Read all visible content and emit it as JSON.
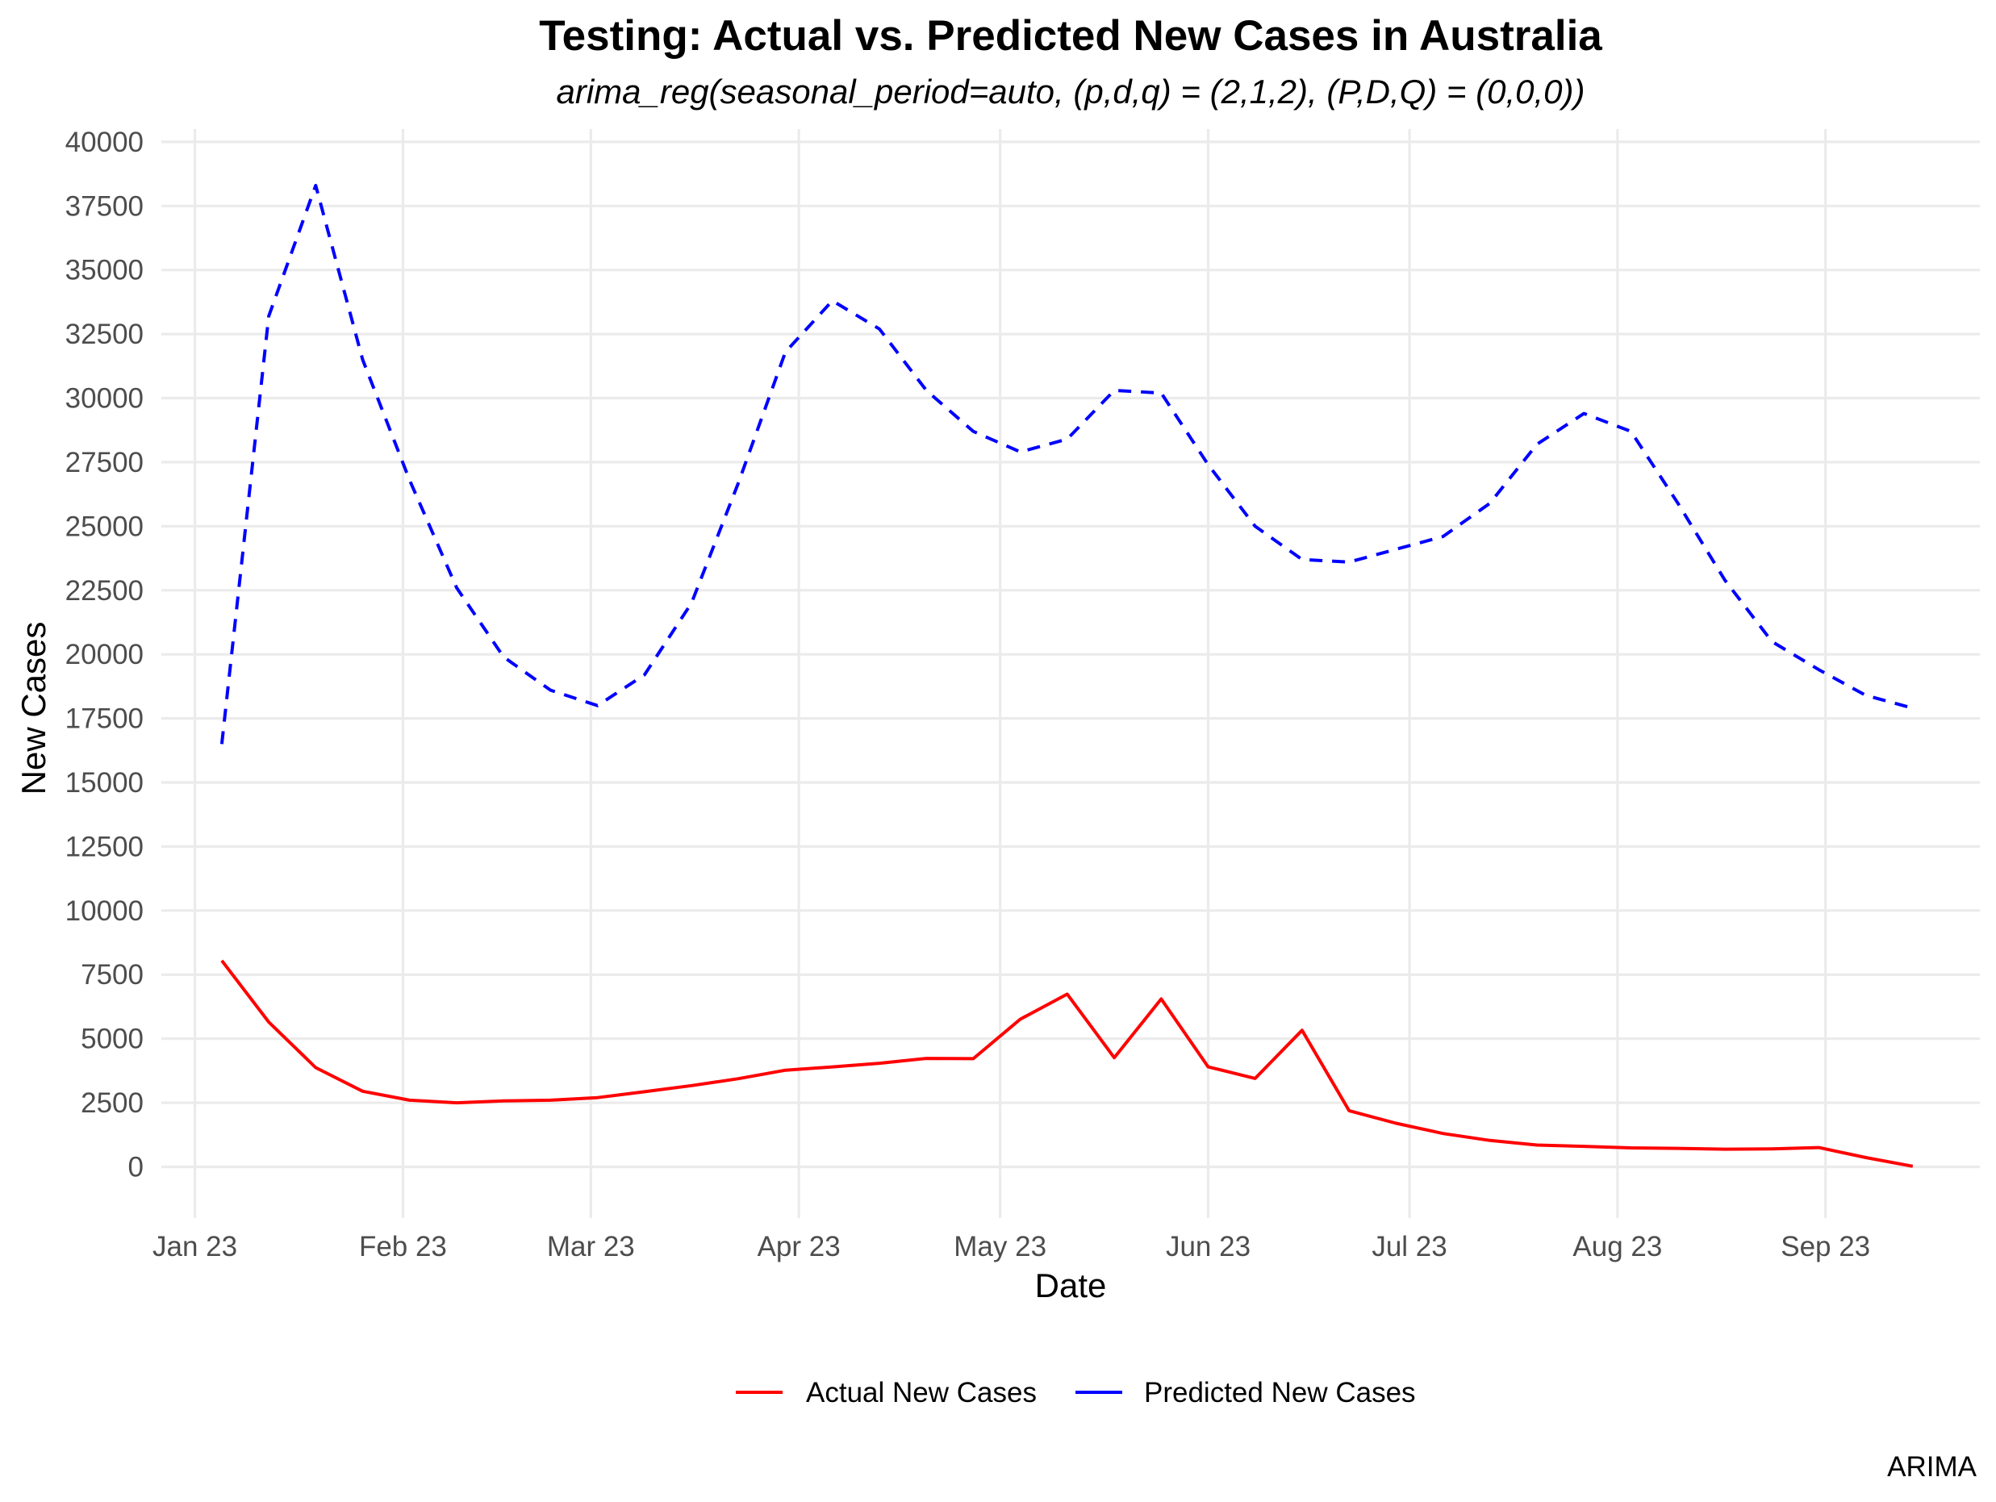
{
  "chart_data": {
    "type": "line",
    "title": "Testing: Actual vs. Predicted New Cases in Australia",
    "subtitle": "arima_reg(seasonal_period=auto, (p,d,q) = (2,1,2), (P,D,Q) = (0,0,0))",
    "xlabel": "Date",
    "ylabel": "New Cases",
    "caption": "ARIMA",
    "xlim": [
      "2022-12-27",
      "2023-09-24"
    ],
    "ylim": [
      -2000,
      40500
    ],
    "x_ticks": [
      {
        "date": "2023-01-01",
        "label": "Jan 23"
      },
      {
        "date": "2023-02-01",
        "label": "Feb 23"
      },
      {
        "date": "2023-03-01",
        "label": "Mar 23"
      },
      {
        "date": "2023-04-01",
        "label": "Apr 23"
      },
      {
        "date": "2023-05-01",
        "label": "May 23"
      },
      {
        "date": "2023-06-01",
        "label": "Jun 23"
      },
      {
        "date": "2023-07-01",
        "label": "Jul 23"
      },
      {
        "date": "2023-08-01",
        "label": "Aug 23"
      },
      {
        "date": "2023-09-01",
        "label": "Sep 23"
      }
    ],
    "y_ticks": [
      0,
      2500,
      5000,
      7500,
      10000,
      12500,
      15000,
      17500,
      20000,
      22500,
      25000,
      27500,
      30000,
      32500,
      35000,
      37500,
      40000
    ],
    "grid": true,
    "legend_position": "bottom",
    "x": [
      "2023-01-05",
      "2023-01-12",
      "2023-01-19",
      "2023-01-26",
      "2023-02-02",
      "2023-02-09",
      "2023-02-16",
      "2023-02-23",
      "2023-03-02",
      "2023-03-09",
      "2023-03-16",
      "2023-03-23",
      "2023-03-30",
      "2023-04-06",
      "2023-04-13",
      "2023-04-20",
      "2023-04-27",
      "2023-05-04",
      "2023-05-11",
      "2023-05-18",
      "2023-05-25",
      "2023-06-01",
      "2023-06-08",
      "2023-06-15",
      "2023-06-22",
      "2023-06-29",
      "2023-07-06",
      "2023-07-13",
      "2023-07-20",
      "2023-07-27",
      "2023-08-03",
      "2023-08-10",
      "2023-08-17",
      "2023-08-24",
      "2023-08-31",
      "2023-09-07",
      "2023-09-14"
    ],
    "series": [
      {
        "name": "Actual New Cases",
        "color": "#ff0000",
        "dash": "solid",
        "values": [
          8050,
          5650,
          3870,
          2950,
          2600,
          2500,
          2570,
          2600,
          2700,
          2930,
          3170,
          3440,
          3770,
          3900,
          4040,
          4230,
          4220,
          5760,
          6740,
          4260,
          6550,
          3900,
          3450,
          5330,
          2190,
          1700,
          1300,
          1030,
          850,
          800,
          740,
          720,
          690,
          700,
          750,
          360,
          20
        ]
      },
      {
        "name": "Predicted New Cases",
        "color": "#0000ff",
        "dash": "dashed",
        "values": [
          16500,
          33200,
          38300,
          31500,
          26800,
          22600,
          19900,
          18600,
          18000,
          19200,
          22000,
          26700,
          31800,
          33800,
          32700,
          30300,
          28700,
          27900,
          28400,
          30300,
          30200,
          27400,
          25000,
          23700,
          23600,
          24100,
          24600,
          25900,
          28200,
          29400,
          28700,
          25900,
          22900,
          20500,
          19400,
          18400,
          17900
        ]
      }
    ]
  }
}
